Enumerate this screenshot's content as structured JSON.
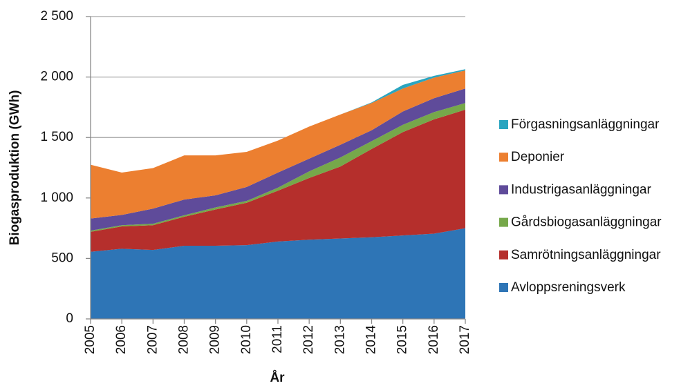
{
  "chart_data": {
    "type": "stacked_area",
    "x_label": "År",
    "y_label": "Biogasproduktion (GWh)",
    "categories": [
      "2005",
      "2006",
      "2007",
      "2008",
      "2009",
      "2010",
      "2011",
      "2012",
      "2013",
      "2014",
      "2015",
      "2016",
      "2017"
    ],
    "series": [
      {
        "name": "Avloppsreningsverk",
        "color": "#2e75b6",
        "values": [
          555,
          580,
          570,
          605,
          605,
          610,
          640,
          655,
          665,
          675,
          690,
          705,
          750
        ]
      },
      {
        "name": "Samrötningsanläggningar",
        "color": "#b52f2c",
        "values": [
          165,
          185,
          205,
          240,
          300,
          350,
          420,
          510,
          595,
          730,
          855,
          945,
          980
        ]
      },
      {
        "name": "Gårdsbiogasanläggningar",
        "color": "#76a84a",
        "values": [
          10,
          10,
          12,
          12,
          17,
          16,
          25,
          55,
          75,
          65,
          60,
          60,
          55
        ]
      },
      {
        "name": "Industrigasanläggningar",
        "color": "#5f4b9a",
        "values": [
          100,
          85,
          125,
          130,
          100,
          115,
          125,
          105,
          105,
          90,
          110,
          115,
          120
        ]
      },
      {
        "name": "Deponier",
        "color": "#ec7f30",
        "values": [
          445,
          350,
          335,
          365,
          330,
          290,
          265,
          265,
          250,
          225,
          190,
          170,
          150
        ]
      },
      {
        "name": "Förgasningsanläggningar",
        "color": "#2aa5c0",
        "values": [
          0,
          0,
          0,
          0,
          0,
          0,
          0,
          0,
          0,
          5,
          30,
          15,
          10
        ]
      }
    ],
    "ylim": [
      0,
      2500
    ],
    "yticks": [
      0,
      500,
      {
        "value": 1000,
        "label": "1 000"
      },
      {
        "value": 1500,
        "label": "1 500"
      },
      {
        "value": 2000,
        "label": "2 000"
      },
      {
        "value": 2500,
        "label": "2 500"
      }
    ],
    "grid": true,
    "legend": "right"
  }
}
